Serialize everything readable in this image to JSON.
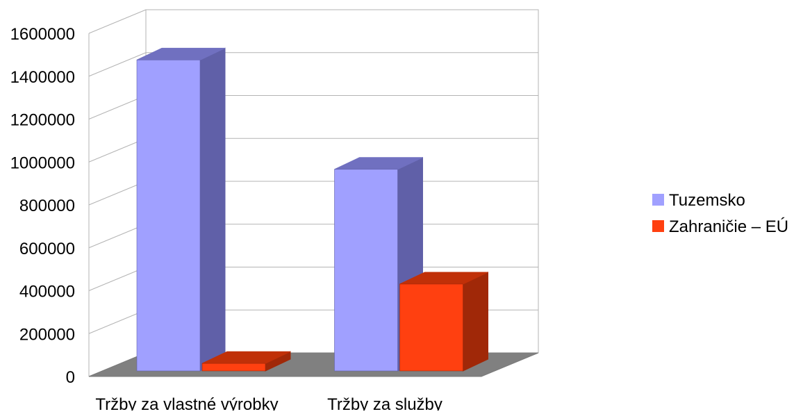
{
  "chart_data": {
    "type": "bar",
    "title": "",
    "xlabel": "",
    "ylabel": "",
    "categories": [
      "Tržby za vlastné výrobky",
      "Tržby za služby"
    ],
    "series": [
      {
        "name": "Tuzemsko",
        "values": [
          1450000,
          940000
        ],
        "color": "#a0a0ff",
        "side_color": "#6060a8",
        "top_color": "#7070c0"
      },
      {
        "name": "Zahraničie – EÚ",
        "values": [
          35000,
          405000
        ],
        "color": "#ff4010",
        "side_color": "#a02808",
        "top_color": "#c03008"
      }
    ],
    "ylim": [
      0,
      1600000
    ],
    "yticks": [
      "0",
      "200000",
      "400000",
      "600000",
      "800000",
      "1000000",
      "1200000",
      "1400000",
      "1600000"
    ],
    "grid": true,
    "legend_position": "right",
    "view": "3d"
  }
}
